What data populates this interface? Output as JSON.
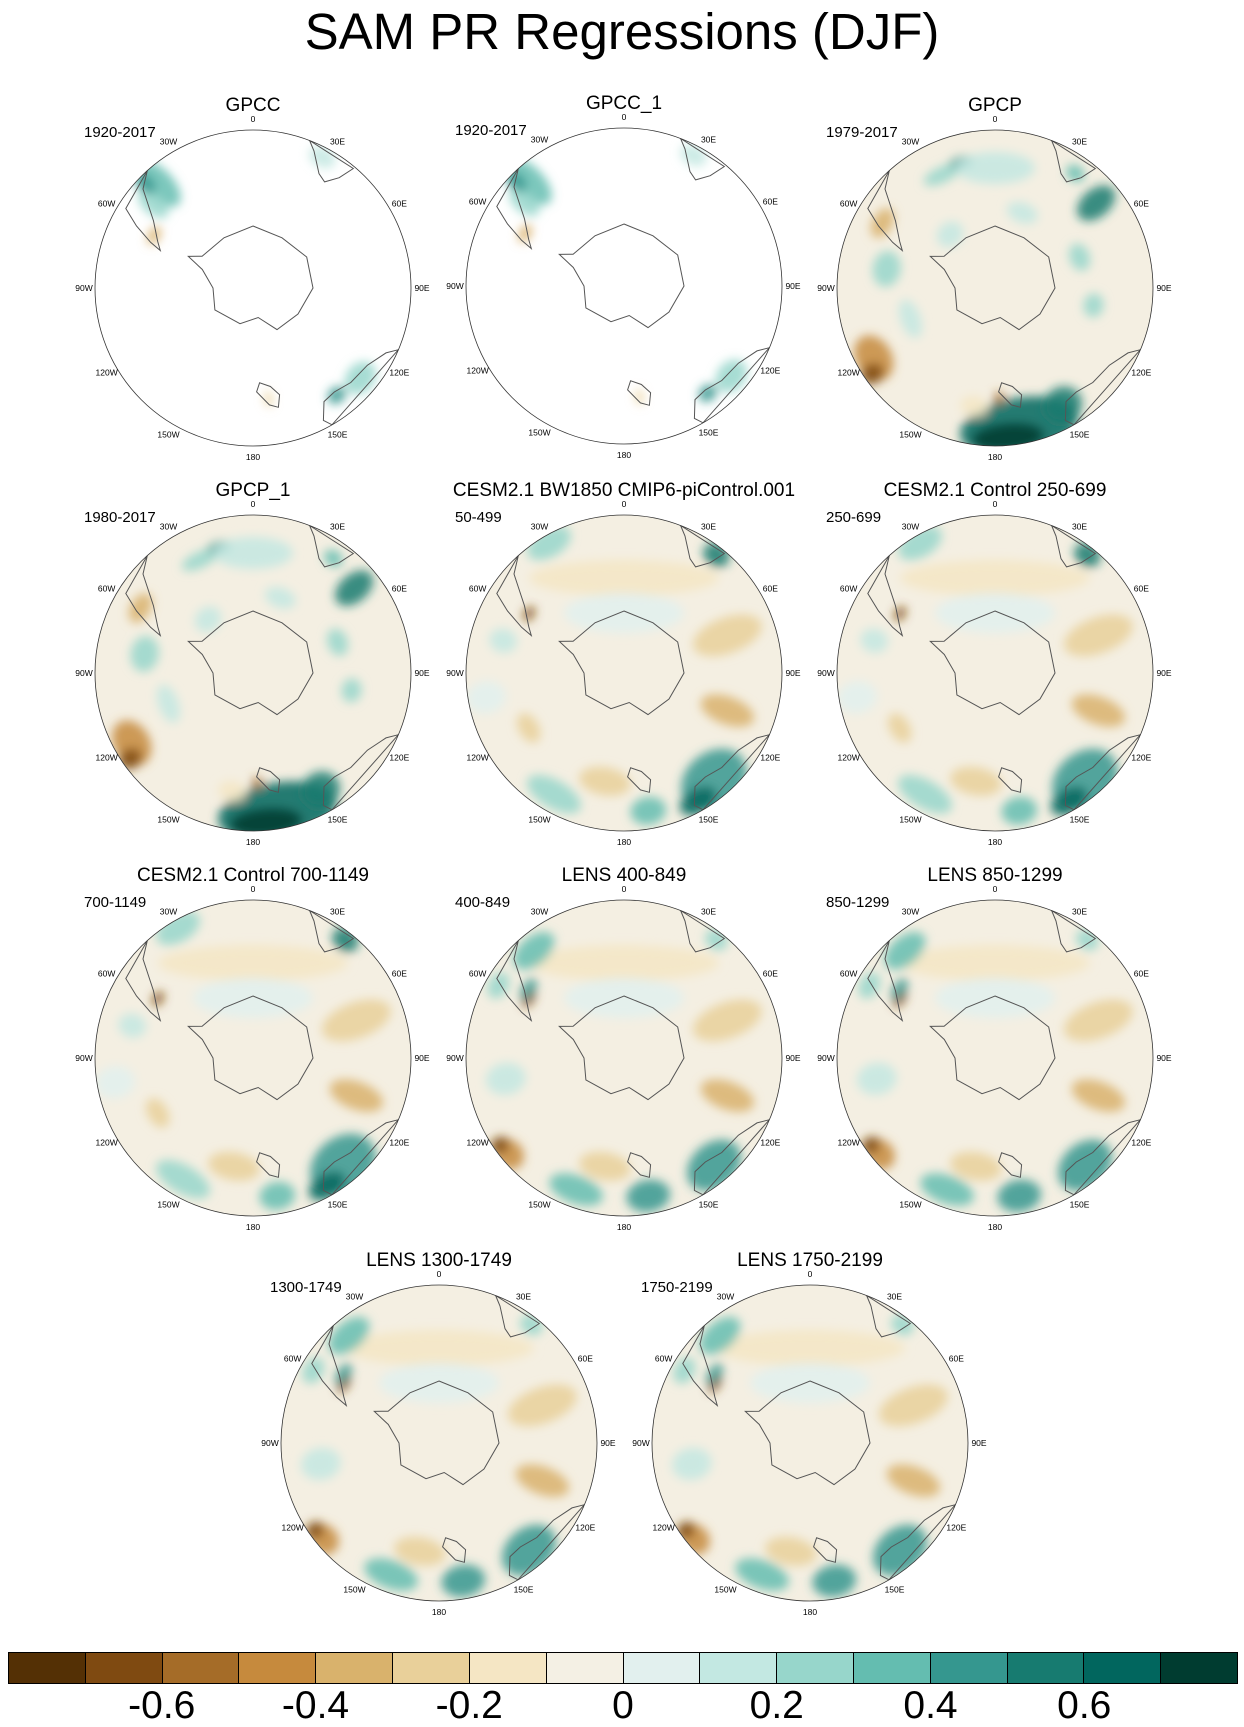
{
  "title": "SAM PR Regressions (DJF)",
  "colors": {
    "scale": [
      "#543005",
      "#7f4a11",
      "#a56c28",
      "#c68a3d",
      "#d9b26c",
      "#e9d09a",
      "#f5e6c4",
      "#f4f0e4",
      "#e2f0ee",
      "#c3e8e2",
      "#97d6cb",
      "#64bdb0",
      "#35978f",
      "#177b70",
      "#01665e",
      "#003c30"
    ],
    "land_outline": "#555555",
    "ocean_bg": "#f4efe2"
  },
  "longitude_labels": [
    "0",
    "30E",
    "60E",
    "90E",
    "120E",
    "150E",
    "180",
    "150W",
    "120W",
    "90W",
    "60W",
    "30W"
  ],
  "panels": [
    {
      "title": "GPCC",
      "period": "1920-2017",
      "field": "land"
    },
    {
      "title": "GPCC_1",
      "period": "1920-2017",
      "field": "land"
    },
    {
      "title": "GPCP",
      "period": "1979-2017",
      "field": "obs"
    },
    {
      "title": "GPCP_1",
      "period": "1980-2017",
      "field": "obs"
    },
    {
      "title": "CESM2.1 BW1850 CMIP6-piControl.001",
      "period": "50-499",
      "field": "model"
    },
    {
      "title": "CESM2.1 Control 250-699",
      "period": "250-699",
      "field": "model"
    },
    {
      "title": "CESM2.1 Control 700-1149",
      "period": "700-1149",
      "field": "model"
    },
    {
      "title": "LENS 400-849",
      "period": "400-849",
      "field": "lens"
    },
    {
      "title": "LENS 850-1299",
      "period": "850-1299",
      "field": "lens"
    },
    {
      "title": "LENS 1300-1749",
      "period": "1300-1749",
      "field": "lens"
    },
    {
      "title": "LENS 1750-2199",
      "period": "1750-2199",
      "field": "lens"
    }
  ],
  "colorbar": {
    "ticks": [
      "-0.6",
      "-0.4",
      "-0.2",
      "0",
      "0.2",
      "0.4",
      "0.6"
    ]
  }
}
